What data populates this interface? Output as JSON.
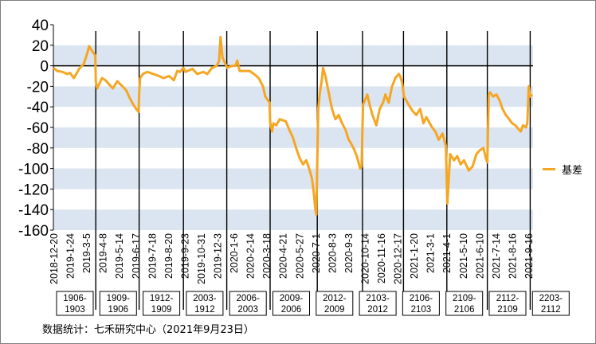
{
  "chart_data": {
    "type": "line",
    "ylim": [
      -160,
      40
    ],
    "yticks": [
      40,
      20,
      0,
      -20,
      -40,
      -60,
      -80,
      -100,
      -120,
      -140,
      -160
    ],
    "grid_bands": true,
    "legend_position": "right",
    "series": [
      {
        "name": "基差",
        "color": "#f5a623",
        "points": [
          [
            "2018-12-20",
            -2
          ],
          [
            "2018-12-28",
            -5
          ],
          [
            "2019-01-08",
            -6
          ],
          [
            "2019-01-18",
            -8
          ],
          [
            "2019-01-24",
            -7
          ],
          [
            "2019-02-01",
            -12
          ],
          [
            "2019-02-12",
            -3
          ],
          [
            "2019-02-22",
            2
          ],
          [
            "2019-03-01",
            12
          ],
          [
            "2019-03-05",
            19
          ],
          [
            "2019-03-12",
            14
          ],
          [
            "2019-03-18",
            10
          ],
          [
            "2019-03-19",
            -15
          ],
          [
            "2019-03-22",
            -22
          ],
          [
            "2019-04-01",
            -12
          ],
          [
            "2019-04-08",
            -14
          ],
          [
            "2019-04-16",
            -18
          ],
          [
            "2019-04-24",
            -22
          ],
          [
            "2019-05-03",
            -15
          ],
          [
            "2019-05-14",
            -20
          ],
          [
            "2019-05-22",
            -24
          ],
          [
            "2019-05-30",
            -32
          ],
          [
            "2019-06-06",
            -38
          ],
          [
            "2019-06-12",
            -42
          ],
          [
            "2019-06-17",
            -45
          ],
          [
            "2019-06-18",
            -28
          ],
          [
            "2019-06-20",
            -12
          ],
          [
            "2019-06-26",
            -8
          ],
          [
            "2019-07-05",
            -6
          ],
          [
            "2019-07-18",
            -8
          ],
          [
            "2019-07-30",
            -10
          ],
          [
            "2019-08-08",
            -12
          ],
          [
            "2019-08-20",
            -10
          ],
          [
            "2019-08-30",
            -14
          ],
          [
            "2019-09-06",
            -5
          ],
          [
            "2019-09-12",
            -6
          ],
          [
            "2019-09-19",
            -2
          ],
          [
            "2019-09-23",
            -6
          ],
          [
            "2019-10-08",
            -3
          ],
          [
            "2019-10-18",
            -8
          ],
          [
            "2019-10-31",
            -6
          ],
          [
            "2019-11-08",
            -8
          ],
          [
            "2019-11-18",
            -2
          ],
          [
            "2019-11-28",
            0
          ],
          [
            "2019-12-03",
            5
          ],
          [
            "2019-12-06",
            28
          ],
          [
            "2019-12-10",
            8
          ],
          [
            "2019-12-16",
            2
          ],
          [
            "2019-12-20",
            -2
          ],
          [
            "2019-12-30",
            0
          ],
          [
            "2020-01-06",
            0
          ],
          [
            "2020-01-10",
            5
          ],
          [
            "2020-01-15",
            -5
          ],
          [
            "2020-02-05",
            -5
          ],
          [
            "2020-02-14",
            -8
          ],
          [
            "2020-02-24",
            -12
          ],
          [
            "2020-03-04",
            -20
          ],
          [
            "2020-03-09",
            -30
          ],
          [
            "2020-03-12",
            -32
          ],
          [
            "2020-03-18",
            -36
          ],
          [
            "2020-03-19",
            -55
          ],
          [
            "2020-03-23",
            -64
          ],
          [
            "2020-03-26",
            -56
          ],
          [
            "2020-04-01",
            -58
          ],
          [
            "2020-04-08",
            -52
          ],
          [
            "2020-04-21",
            -54
          ],
          [
            "2020-04-28",
            -62
          ],
          [
            "2020-05-06",
            -70
          ],
          [
            "2020-05-14",
            -82
          ],
          [
            "2020-05-20",
            -90
          ],
          [
            "2020-05-27",
            -96
          ],
          [
            "2020-06-03",
            -92
          ],
          [
            "2020-06-09",
            -100
          ],
          [
            "2020-06-15",
            -110
          ],
          [
            "2020-06-19",
            -125
          ],
          [
            "2020-06-22",
            -140
          ],
          [
            "2020-06-24",
            -145
          ],
          [
            "2020-06-28",
            -42
          ],
          [
            "2020-07-01",
            -28
          ],
          [
            "2020-07-06",
            -12
          ],
          [
            "2020-07-08",
            -2
          ],
          [
            "2020-07-13",
            -10
          ],
          [
            "2020-07-20",
            -26
          ],
          [
            "2020-07-27",
            -42
          ],
          [
            "2020-08-03",
            -52
          ],
          [
            "2020-08-10",
            -48
          ],
          [
            "2020-08-17",
            -56
          ],
          [
            "2020-08-24",
            -62
          ],
          [
            "2020-08-31",
            -72
          ],
          [
            "2020-09-03",
            -74
          ],
          [
            "2020-09-10",
            -80
          ],
          [
            "2020-09-17",
            -88
          ],
          [
            "2020-09-24",
            -100
          ],
          [
            "2020-09-27",
            -98
          ],
          [
            "2020-09-30",
            -38
          ],
          [
            "2020-10-09",
            -28
          ],
          [
            "2020-10-14",
            -38
          ],
          [
            "2020-10-20",
            -48
          ],
          [
            "2020-10-28",
            -58
          ],
          [
            "2020-11-04",
            -42
          ],
          [
            "2020-11-11",
            -36
          ],
          [
            "2020-11-16",
            -28
          ],
          [
            "2020-11-23",
            -36
          ],
          [
            "2020-11-30",
            -20
          ],
          [
            "2020-12-07",
            -12
          ],
          [
            "2020-12-14",
            -8
          ],
          [
            "2020-12-17",
            -10
          ],
          [
            "2020-12-21",
            -16
          ],
          [
            "2020-12-25",
            -30
          ],
          [
            "2021-01-04",
            -38
          ],
          [
            "2021-01-12",
            -44
          ],
          [
            "2021-01-20",
            -48
          ],
          [
            "2021-01-28",
            -42
          ],
          [
            "2021-02-04",
            -56
          ],
          [
            "2021-02-10",
            -50
          ],
          [
            "2021-02-22",
            -60
          ],
          [
            "2021-03-01",
            -64
          ],
          [
            "2021-03-08",
            -72
          ],
          [
            "2021-03-16",
            -66
          ],
          [
            "2021-03-23",
            -78
          ],
          [
            "2021-03-26",
            -134
          ],
          [
            "2021-03-29",
            -110
          ],
          [
            "2021-04-01",
            -86
          ],
          [
            "2021-04-09",
            -92
          ],
          [
            "2021-04-16",
            -88
          ],
          [
            "2021-04-23",
            -96
          ],
          [
            "2021-04-30",
            -92
          ],
          [
            "2021-05-10",
            -102
          ],
          [
            "2021-05-18",
            -98
          ],
          [
            "2021-05-26",
            -86
          ],
          [
            "2021-06-03",
            -82
          ],
          [
            "2021-06-10",
            -80
          ],
          [
            "2021-06-15",
            -90
          ],
          [
            "2021-06-18",
            -94
          ],
          [
            "2021-06-21",
            -28
          ],
          [
            "2021-06-24",
            -26
          ],
          [
            "2021-06-30",
            -30
          ],
          [
            "2021-07-07",
            -28
          ],
          [
            "2021-07-14",
            -34
          ],
          [
            "2021-07-20",
            -42
          ],
          [
            "2021-07-27",
            -48
          ],
          [
            "2021-08-03",
            -52
          ],
          [
            "2021-08-09",
            -56
          ],
          [
            "2021-08-16",
            -58
          ],
          [
            "2021-08-23",
            -62
          ],
          [
            "2021-08-27",
            -64
          ],
          [
            "2021-09-01",
            -58
          ],
          [
            "2021-09-07",
            -60
          ],
          [
            "2021-09-10",
            -56
          ],
          [
            "2021-09-13",
            -20
          ],
          [
            "2021-09-16",
            -30
          ],
          [
            "2021-09-20",
            -28
          ]
        ]
      }
    ],
    "x_tick_labels": [
      "2018-12-20",
      "2019-1-24",
      "2019-3-5",
      "2019-4-8",
      "2019-5-14",
      "2019-6-17",
      "2019-7-18",
      "2019-8-20",
      "2019-9-23",
      "2019-10-31",
      "2019-12-3",
      "2020-1-6",
      "2020-2-14",
      "2020-3-18",
      "2020-4-21",
      "2020-5-27",
      "2020-7-1",
      "2020-8-3",
      "2020-9-3",
      "2020-10-14",
      "2020-11-16",
      "2020-12-17",
      "2021-1-20",
      "2021-3-1",
      "2021-4-1",
      "2021-5-10",
      "2021-6-10",
      "2021-7-14",
      "2021-8-16",
      "2021-9-16"
    ],
    "contract_switch_dates": [
      "2019-03-19",
      "2019-06-18",
      "2019-09-19",
      "2019-12-19",
      "2020-03-19",
      "2020-06-26",
      "2020-09-29",
      "2020-12-24",
      "2021-03-25",
      "2021-06-18",
      "2021-09-16"
    ],
    "contract_labels": [
      {
        "top": "1906-",
        "bottom": "1903"
      },
      {
        "top": "1909-",
        "bottom": "1906"
      },
      {
        "top": "1912-",
        "bottom": "1909"
      },
      {
        "top": "2003-",
        "bottom": "1912"
      },
      {
        "top": "2006-",
        "bottom": "2003"
      },
      {
        "top": "2009-",
        "bottom": "2006"
      },
      {
        "top": "2012-",
        "bottom": "2009"
      },
      {
        "top": "2103-",
        "bottom": "2012"
      },
      {
        "top": "2106-",
        "bottom": "2103"
      },
      {
        "top": "2109-",
        "bottom": "2106"
      },
      {
        "top": "2112-",
        "bottom": "2109"
      },
      {
        "top": "2203-",
        "bottom": "2112"
      }
    ]
  },
  "legend": {
    "label": "基差"
  },
  "footer": {
    "text": "数据统计：七禾研究中心（2021年9月23日）"
  }
}
